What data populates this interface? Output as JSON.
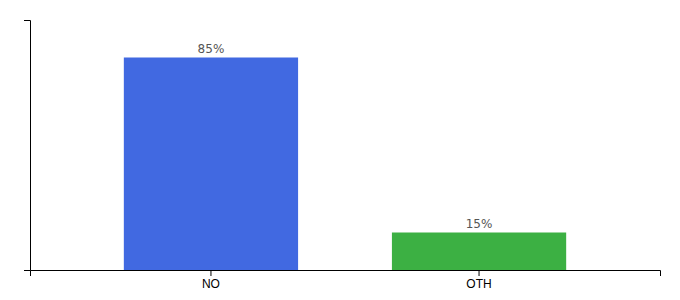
{
  "chart_data": {
    "type": "bar",
    "categories": [
      "NO",
      "OTH"
    ],
    "values": [
      85,
      15
    ],
    "value_labels": [
      "85%",
      "15%"
    ],
    "colors": [
      "#4169E1",
      "#3CB043"
    ],
    "ylim": [
      0,
      100
    ],
    "data_labels": true,
    "tick_labels": "x"
  }
}
